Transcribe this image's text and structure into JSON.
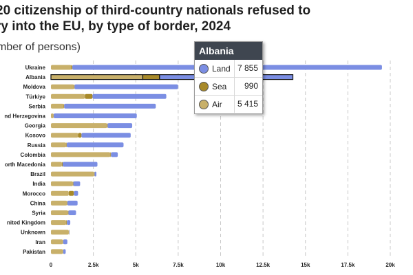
{
  "title": "20 citizenship of third-country nationals refused to\nry into the EU, by type of border, 2024",
  "subtitle": "mber of persons)",
  "colors": {
    "land": "#7b8ee3",
    "sea": "#a88a2a",
    "air": "#c8b06a",
    "grid": "#c8c8c8"
  },
  "tooltip": {
    "title": "Albania",
    "rows": [
      {
        "name": "Land",
        "value": "7 855",
        "color": "#7b8ee3"
      },
      {
        "name": "Sea",
        "value": "990",
        "color": "#a88a2a"
      },
      {
        "name": "Air",
        "value": "5 415",
        "color": "#c8b06a"
      }
    ]
  },
  "chart_data": {
    "type": "bar",
    "orientation": "horizontal",
    "stacked": true,
    "categories": [
      "Ukraine",
      "Albania",
      "Moldova",
      "Türkiye",
      "Serbia",
      "nd Herzegovina",
      "Georgia",
      "Kosovo",
      "Russia",
      "Colombia",
      "orth Macedonia",
      "Brazil",
      "India",
      "Morocco",
      "China",
      "Syria",
      "nited Kingdom",
      "Unknown",
      "Iran",
      "Pakistan"
    ],
    "series": [
      {
        "key": "air",
        "values": [
          1200,
          5415,
          1350,
          2000,
          750,
          150,
          3300,
          1600,
          900,
          3500,
          650,
          2550,
          1300,
          1050,
          950,
          1000,
          900,
          1050,
          700,
          700
        ]
      },
      {
        "key": "sea",
        "values": [
          60,
          990,
          40,
          450,
          30,
          10,
          40,
          200,
          30,
          40,
          40,
          20,
          20,
          300,
          20,
          30,
          40,
          20,
          20,
          20
        ]
      },
      {
        "key": "land",
        "values": [
          18250,
          7855,
          6100,
          4350,
          5400,
          4900,
          1450,
          2900,
          3350,
          400,
          2050,
          110,
          400,
          250,
          600,
          450,
          200,
          20,
          250,
          150
        ]
      }
    ],
    "highlighted_category": "Albania",
    "xlim": [
      0,
      20000
    ],
    "xticks": [
      0,
      2500,
      5000,
      7500,
      10000,
      12500,
      15000,
      17500,
      20000
    ],
    "xtick_labels": [
      "0",
      "2.5k",
      "5k",
      "7.5k",
      "10k",
      "12.5k",
      "15k",
      "17.5k",
      "20k"
    ],
    "grid": true
  }
}
